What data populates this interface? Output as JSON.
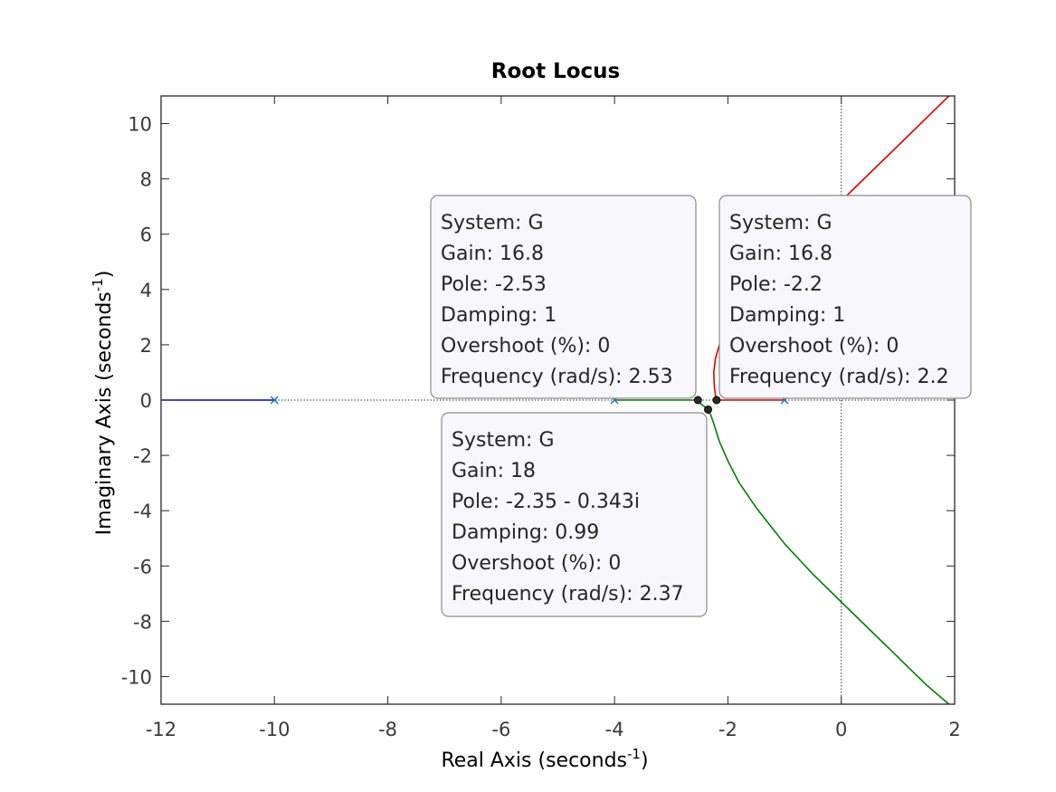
{
  "chart_data": {
    "type": "line",
    "title": "Root Locus",
    "xlabel": "Real Axis (seconds",
    "ylabel": "Imaginary Axis (seconds",
    "axis_unit_exponent": "-1",
    "xlim": [
      -12,
      2
    ],
    "ylim": [
      -11,
      11
    ],
    "xticks": [
      -12,
      -10,
      -8,
      -6,
      -4,
      -2,
      0,
      2
    ],
    "yticks": [
      -10,
      -8,
      -6,
      -4,
      -2,
      0,
      2,
      4,
      6,
      8,
      10
    ],
    "grid": false,
    "colors": {
      "axes_box": "#262626",
      "reference_lines": "#333333",
      "datatip_bg": "#f8f8fc",
      "datatip_border": "#8c8c8c",
      "pole_marker": "#1f77c4"
    },
    "poles": [
      {
        "x": -10,
        "y": 0
      },
      {
        "x": -4,
        "y": 0
      },
      {
        "x": -1,
        "y": 0
      }
    ],
    "series": [
      {
        "color": "#0000cc",
        "x": [
          -10,
          -12
        ],
        "y": [
          0,
          0
        ]
      },
      {
        "color": "#007f00",
        "x": [
          -4,
          -2.53,
          -2.5,
          -2.45,
          -2.4,
          -2.35,
          -2.3,
          -2.25,
          -2.15,
          -2.0,
          -1.8,
          -1.5,
          -1.0,
          -0.5,
          0.0,
          0.5,
          1.0,
          1.5,
          1.9
        ],
        "y": [
          0,
          0,
          -0.1,
          -0.18,
          -0.26,
          -0.34,
          -0.55,
          -0.85,
          -1.5,
          -2.2,
          -3.0,
          -3.9,
          -5.2,
          -6.3,
          -7.3,
          -8.3,
          -9.3,
          -10.3,
          -11.0
        ]
      },
      {
        "color": "#e00000",
        "x": [
          -1,
          -2.2,
          -2.22,
          -2.24,
          -2.25,
          -2.22,
          -2.15,
          -2.0,
          -1.8,
          -1.5,
          -1.0,
          -0.5,
          0.0,
          0.5,
          1.0,
          1.5,
          1.9
        ],
        "y": [
          0,
          0,
          0.2,
          0.5,
          1.0,
          1.5,
          2.0,
          2.6,
          3.2,
          3.9,
          5.0,
          6.1,
          7.2,
          8.2,
          9.2,
          10.2,
          11.0
        ]
      }
    ],
    "marked_points": [
      {
        "x": -2.53,
        "y": 0
      },
      {
        "x": -2.2,
        "y": 0
      },
      {
        "x": -2.35,
        "y": -0.343
      }
    ],
    "datatips": [
      {
        "lines": [
          "System: G",
          "Gain: 16.8",
          "Pole: -2.53",
          "Damping: 1",
          "Overshoot (%): 0",
          "Frequency (rad/s): 2.53"
        ]
      },
      {
        "lines": [
          "System: G",
          "Gain: 16.8",
          "Pole: -2.2",
          "Damping: 1",
          "Overshoot (%): 0",
          "Frequency (rad/s): 2.2"
        ]
      },
      {
        "lines": [
          "System: G",
          "Gain: 18",
          "Pole: -2.35 - 0.343i",
          "Damping: 0.99",
          "Overshoot (%): 0",
          "Frequency (rad/s): 2.37"
        ]
      }
    ]
  }
}
